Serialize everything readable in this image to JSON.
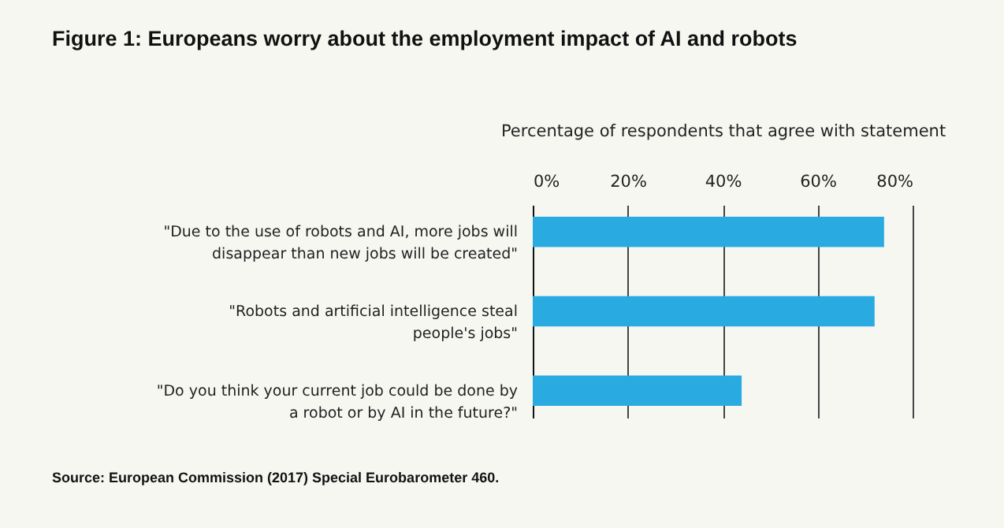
{
  "chart_data": {
    "type": "bar",
    "orientation": "horizontal",
    "title": "Figure 1: Europeans worry about the employment impact of AI and robots",
    "xlabel": "Percentage of respondents that agree with statement",
    "categories": [
      "\"Due to the use of robots and AI, more jobs will disappear than new jobs will be created\"",
      "\"Robots and artificial intelligence steal people's jobs\"",
      "\"Do you think your current job could be done by a robot or by AI in the future?\""
    ],
    "values": [
      74,
      72,
      44
    ],
    "color": "#29abe2",
    "xlim": [
      0,
      80
    ],
    "xticks": [
      {
        "value": 0,
        "label": "0%"
      },
      {
        "value": 20,
        "label": "20%"
      },
      {
        "value": 40,
        "label": "40%"
      },
      {
        "value": 60,
        "label": "60%"
      },
      {
        "value": 80,
        "label": "80%"
      }
    ],
    "grid": true,
    "annotations": [
      "Source: European Commission (2017) Special Eurobarometer 460."
    ]
  }
}
